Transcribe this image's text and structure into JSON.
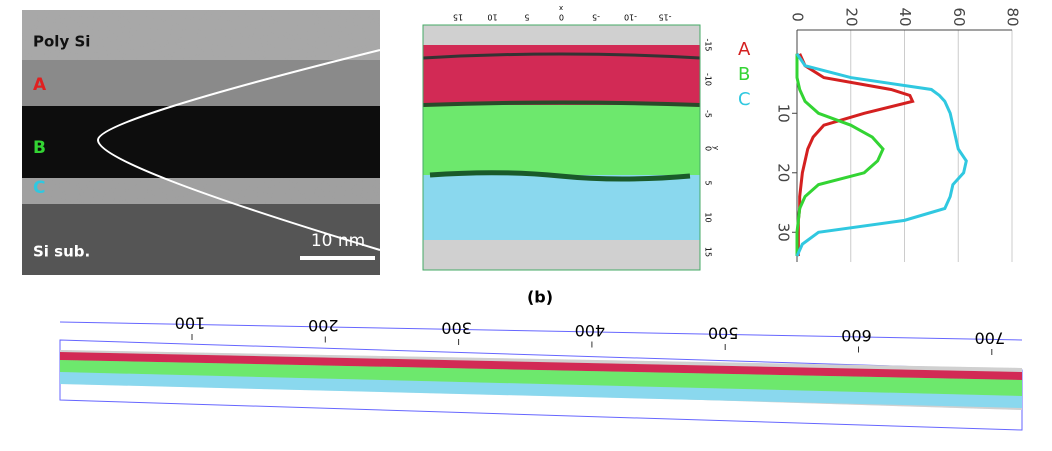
{
  "panel_a": {
    "poly_si": "Poly Si",
    "a": "A",
    "b": "B",
    "c": "C",
    "si_sub": "Si sub.",
    "scale_bar": "10 nm"
  },
  "panel_apt": {
    "top_ticks": [
      "15",
      "10",
      "5",
      "0",
      "-5",
      "-10",
      "-15"
    ],
    "top_axis_label": "x",
    "right_ticks": [
      "-15",
      "-10",
      "-5",
      "0",
      "5",
      "10",
      "15"
    ],
    "right_axis_label": "y"
  },
  "panel_b": {
    "label": "(b)",
    "ticks": [
      "100",
      "200",
      "300",
      "400",
      "500",
      "600",
      "700"
    ]
  },
  "chart_data": {
    "type": "line",
    "x": [
      0,
      2,
      4,
      6,
      7,
      8,
      10,
      12,
      14,
      16,
      18,
      20,
      22,
      24,
      26,
      28,
      30,
      32,
      34
    ],
    "xlim": [
      -4,
      35
    ],
    "xticks": [
      10,
      20,
      30
    ],
    "ylim": [
      0,
      80
    ],
    "yticks": [
      0,
      20,
      40,
      60,
      80
    ],
    "grid": true,
    "series": [
      {
        "name": "A",
        "color": "#d42020",
        "values": [
          1,
          3,
          10,
          35,
          42,
          43,
          25,
          10,
          6,
          4,
          3,
          2,
          1.5,
          1,
          1,
          0.5,
          0.5,
          0.5,
          0.5
        ]
      },
      {
        "name": "B",
        "color": "#33d433",
        "values": [
          0,
          0,
          0,
          1,
          2,
          3,
          8,
          20,
          28,
          32,
          30,
          25,
          8,
          3,
          1,
          0.5,
          0,
          0,
          0
        ]
      },
      {
        "name": "C",
        "color": "#30c8e0",
        "values": [
          0,
          3,
          20,
          50,
          53,
          55,
          57,
          58,
          59,
          60,
          63,
          62,
          58,
          57,
          55,
          40,
          8,
          2,
          0
        ]
      }
    ]
  }
}
